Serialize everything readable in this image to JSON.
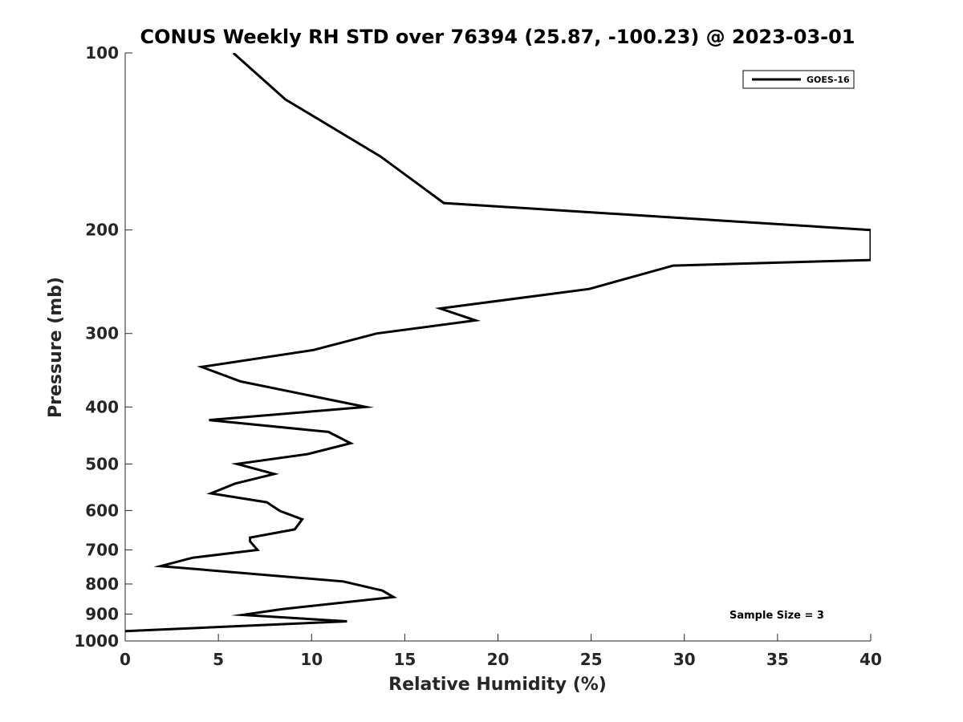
{
  "chart_data": {
    "type": "line",
    "title": "CONUS Weekly RH STD over 76394 (25.87, -100.23) @ 2023-03-01",
    "xlabel": "Relative Humidity (%)",
    "ylabel": "Pressure (mb)",
    "xlim": [
      0,
      40
    ],
    "ylim": [
      100,
      1000
    ],
    "y_scale": "log",
    "y_direction": "reversed",
    "grid": false,
    "legend_position": "top-right",
    "x_ticks": [
      "0",
      "5",
      "10",
      "15",
      "20",
      "25",
      "30",
      "35",
      "40"
    ],
    "y_ticks": [
      "100",
      "200",
      "300",
      "400",
      "500",
      "600",
      "700",
      "800",
      "900",
      "1000"
    ],
    "annotation": "Sample Size = 3",
    "series": [
      {
        "name": "GOES-16",
        "color": "#000000",
        "x": [
          5.8,
          8.6,
          13.7,
          17.1,
          40,
          40,
          29.4,
          24.9,
          16.9,
          18.8,
          13.5,
          10.1,
          4.1,
          6.2,
          12.9,
          4.5,
          10.9,
          12.1,
          9.8,
          6.0,
          8.0,
          5.9,
          4.6,
          7.6,
          8.3,
          9.5,
          9.1,
          6.7,
          6.7,
          7.1,
          3.6,
          1.9,
          11.7,
          13.8,
          14.4,
          8.4,
          6.3,
          11.9,
          0
        ],
        "y": [
          100,
          120,
          150,
          180,
          200,
          225,
          230,
          252,
          272,
          285,
          300,
          320,
          342,
          362,
          400,
          421,
          441,
          461,
          481,
          500,
          520,
          540,
          561,
          581,
          601,
          621,
          646,
          667,
          677,
          700,
          722,
          746,
          792,
          821,
          842,
          883,
          903,
          926,
          962
        ]
      }
    ]
  }
}
